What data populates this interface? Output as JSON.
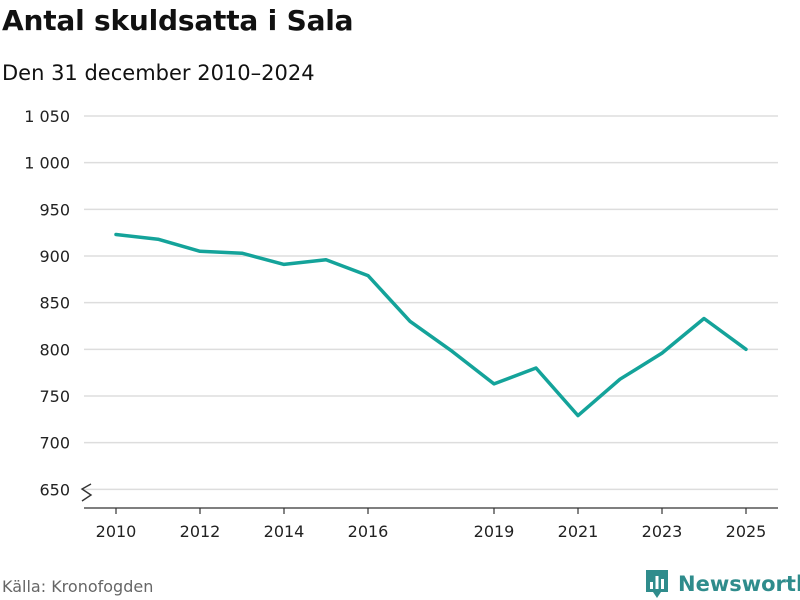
{
  "header": {
    "title": "Antal skuldsatta i Sala",
    "subtitle": "Den 31 december 2010–2024"
  },
  "footer": {
    "source": "Källa: Kronofogden",
    "brand": "Newsworthy"
  },
  "colors": {
    "line": "#14a39a",
    "brand": "#2f8c8c",
    "grid": "#dddddd",
    "axis": "#333333"
  },
  "chart_data": {
    "type": "line",
    "title": "Antal skuldsatta i Sala",
    "subtitle": "Den 31 december 2010–2024",
    "xlabel": "",
    "ylabel": "",
    "x": [
      2010,
      2011,
      2012,
      2013,
      2014,
      2015,
      2016,
      2017,
      2018,
      2019,
      2020,
      2021,
      2022,
      2023,
      2024,
      2025
    ],
    "values": [
      923,
      918,
      905,
      903,
      891,
      896,
      879,
      830,
      798,
      763,
      780,
      729,
      768,
      796,
      833,
      800
    ],
    "xlim": [
      2010,
      2025
    ],
    "ylim": [
      630,
      1050
    ],
    "y_ticks": [
      650,
      700,
      750,
      800,
      850,
      900,
      950,
      1000,
      1050
    ],
    "y_tick_labels": [
      "650",
      "700",
      "750",
      "800",
      "850",
      "900",
      "950",
      "1 000",
      "1 050"
    ],
    "x_ticks": [
      2010,
      2012,
      2014,
      2016,
      2019,
      2021,
      2023,
      2025
    ],
    "x_tick_labels": [
      "2010",
      "2012",
      "2014",
      "2016",
      "2019",
      "2021",
      "2023",
      "2025"
    ],
    "axis_break": true,
    "grid": true,
    "legend": "none"
  }
}
